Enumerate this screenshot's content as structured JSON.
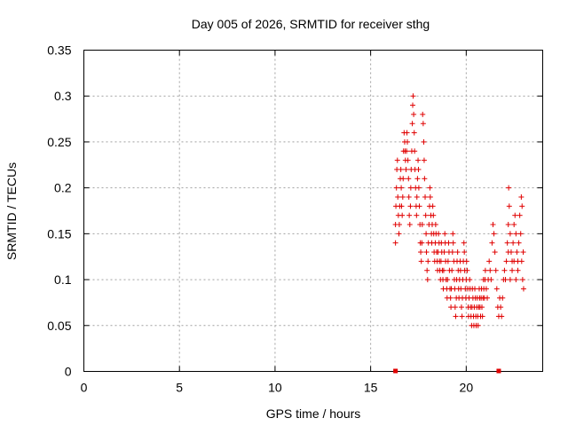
{
  "chart_data": {
    "type": "scatter",
    "title": "Day 005 of 2026, SRMTID for receiver sthg",
    "xlabel": "GPS time / hours",
    "ylabel": "SRMTID / TECUs",
    "xlim": [
      0,
      24
    ],
    "ylim": [
      0,
      0.35
    ],
    "xticks": [
      0,
      5,
      10,
      15,
      20
    ],
    "xtick_labels": [
      "0",
      "5",
      "10",
      "15",
      "20"
    ],
    "yticks": [
      0,
      0.05,
      0.1,
      0.15,
      0.2,
      0.25,
      0.3,
      0.35
    ],
    "ytick_labels": [
      "0",
      "0.05",
      "0.1",
      "0.15",
      "0.2",
      "0.25",
      "0.3",
      "0.35"
    ],
    "grid": true,
    "marker": "+",
    "color": "#e00000",
    "zero_markers": [
      [
        16.3,
        0
      ],
      [
        21.7,
        0
      ]
    ],
    "series": [
      {
        "name": "SRMTID",
        "points": [
          [
            16.3,
            0.14
          ],
          [
            16.3,
            0.16
          ],
          [
            16.32,
            0.18
          ],
          [
            16.35,
            0.2
          ],
          [
            16.37,
            0.22
          ],
          [
            16.4,
            0.23
          ],
          [
            16.42,
            0.19
          ],
          [
            16.45,
            0.17
          ],
          [
            16.48,
            0.15
          ],
          [
            16.5,
            0.16
          ],
          [
            16.52,
            0.18
          ],
          [
            16.55,
            0.21
          ],
          [
            16.58,
            0.22
          ],
          [
            16.6,
            0.2
          ],
          [
            16.62,
            0.18
          ],
          [
            16.65,
            0.17
          ],
          [
            16.68,
            0.19
          ],
          [
            16.7,
            0.21
          ],
          [
            16.72,
            0.24
          ],
          [
            16.75,
            0.26
          ],
          [
            16.78,
            0.25
          ],
          [
            16.8,
            0.24
          ],
          [
            16.82,
            0.23
          ],
          [
            16.85,
            0.22
          ],
          [
            16.88,
            0.24
          ],
          [
            16.9,
            0.26
          ],
          [
            16.92,
            0.25
          ],
          [
            16.95,
            0.23
          ],
          [
            16.98,
            0.21
          ],
          [
            17.0,
            0.19
          ],
          [
            17.02,
            0.17
          ],
          [
            17.05,
            0.16
          ],
          [
            17.08,
            0.18
          ],
          [
            17.1,
            0.2
          ],
          [
            17.12,
            0.22
          ],
          [
            17.15,
            0.24
          ],
          [
            17.18,
            0.27
          ],
          [
            17.2,
            0.29
          ],
          [
            17.22,
            0.3
          ],
          [
            17.25,
            0.28
          ],
          [
            17.28,
            0.26
          ],
          [
            17.3,
            0.24
          ],
          [
            17.32,
            0.22
          ],
          [
            17.35,
            0.2
          ],
          [
            17.38,
            0.18
          ],
          [
            17.4,
            0.17
          ],
          [
            17.42,
            0.19
          ],
          [
            17.45,
            0.21
          ],
          [
            17.48,
            0.23
          ],
          [
            17.5,
            0.22
          ],
          [
            17.52,
            0.2
          ],
          [
            17.55,
            0.18
          ],
          [
            17.58,
            0.16
          ],
          [
            17.6,
            0.14
          ],
          [
            17.62,
            0.13
          ],
          [
            17.65,
            0.12
          ],
          [
            17.68,
            0.14
          ],
          [
            17.7,
            0.16
          ],
          [
            17.72,
            0.28
          ],
          [
            17.75,
            0.27
          ],
          [
            17.78,
            0.25
          ],
          [
            17.8,
            0.23
          ],
          [
            17.82,
            0.21
          ],
          [
            17.85,
            0.19
          ],
          [
            17.88,
            0.17
          ],
          [
            17.9,
            0.15
          ],
          [
            17.92,
            0.13
          ],
          [
            17.95,
            0.11
          ],
          [
            17.98,
            0.1
          ],
          [
            18.0,
            0.12
          ],
          [
            18.02,
            0.14
          ],
          [
            18.05,
            0.16
          ],
          [
            18.08,
            0.18
          ],
          [
            18.1,
            0.2
          ],
          [
            18.12,
            0.19
          ],
          [
            18.15,
            0.17
          ],
          [
            18.18,
            0.15
          ],
          [
            18.2,
            0.14
          ],
          [
            18.22,
            0.16
          ],
          [
            18.25,
            0.18
          ],
          [
            18.28,
            0.17
          ],
          [
            18.3,
            0.15
          ],
          [
            18.32,
            0.13
          ],
          [
            18.35,
            0.12
          ],
          [
            18.38,
            0.14
          ],
          [
            18.4,
            0.16
          ],
          [
            18.42,
            0.15
          ],
          [
            18.45,
            0.13
          ],
          [
            18.48,
            0.12
          ],
          [
            18.5,
            0.11
          ],
          [
            18.52,
            0.13
          ],
          [
            18.55,
            0.15
          ],
          [
            18.58,
            0.14
          ],
          [
            18.6,
            0.12
          ],
          [
            18.62,
            0.11
          ],
          [
            18.65,
            0.1
          ],
          [
            18.68,
            0.12
          ],
          [
            18.7,
            0.14
          ],
          [
            18.72,
            0.13
          ],
          [
            18.75,
            0.11
          ],
          [
            18.78,
            0.1
          ],
          [
            18.8,
            0.09
          ],
          [
            18.82,
            0.11
          ],
          [
            18.85,
            0.13
          ],
          [
            18.88,
            0.15
          ],
          [
            18.9,
            0.14
          ],
          [
            18.92,
            0.12
          ],
          [
            18.95,
            0.1
          ],
          [
            18.98,
            0.09
          ],
          [
            19.0,
            0.08
          ],
          [
            19.02,
            0.1
          ],
          [
            19.05,
            0.12
          ],
          [
            19.08,
            0.14
          ],
          [
            19.1,
            0.13
          ],
          [
            19.12,
            0.11
          ],
          [
            19.15,
            0.09
          ],
          [
            19.18,
            0.08
          ],
          [
            19.2,
            0.07
          ],
          [
            19.22,
            0.09
          ],
          [
            19.25,
            0.11
          ],
          [
            19.28,
            0.13
          ],
          [
            19.3,
            0.15
          ],
          [
            19.32,
            0.14
          ],
          [
            19.35,
            0.12
          ],
          [
            19.38,
            0.1
          ],
          [
            19.4,
            0.09
          ],
          [
            19.42,
            0.07
          ],
          [
            19.45,
            0.06
          ],
          [
            19.48,
            0.08
          ],
          [
            19.5,
            0.1
          ],
          [
            19.52,
            0.12
          ],
          [
            19.55,
            0.13
          ],
          [
            19.58,
            0.11
          ],
          [
            19.6,
            0.09
          ],
          [
            19.62,
            0.08
          ],
          [
            19.65,
            0.1
          ],
          [
            19.68,
            0.12
          ],
          [
            19.7,
            0.11
          ],
          [
            19.72,
            0.09
          ],
          [
            19.75,
            0.07
          ],
          [
            19.78,
            0.06
          ],
          [
            19.8,
            0.08
          ],
          [
            19.82,
            0.1
          ],
          [
            19.85,
            0.12
          ],
          [
            19.88,
            0.14
          ],
          [
            19.9,
            0.13
          ],
          [
            19.92,
            0.11
          ],
          [
            19.95,
            0.09
          ],
          [
            19.98,
            0.08
          ],
          [
            20.0,
            0.1
          ],
          [
            20.02,
            0.12
          ],
          [
            20.05,
            0.11
          ],
          [
            20.08,
            0.09
          ],
          [
            20.1,
            0.07
          ],
          [
            20.12,
            0.06
          ],
          [
            20.15,
            0.08
          ],
          [
            20.18,
            0.1
          ],
          [
            20.2,
            0.09
          ],
          [
            20.22,
            0.07
          ],
          [
            20.25,
            0.06
          ],
          [
            20.28,
            0.05
          ],
          [
            20.3,
            0.07
          ],
          [
            20.32,
            0.09
          ],
          [
            20.35,
            0.08
          ],
          [
            20.38,
            0.06
          ],
          [
            20.4,
            0.05
          ],
          [
            20.42,
            0.07
          ],
          [
            20.45,
            0.09
          ],
          [
            20.48,
            0.08
          ],
          [
            20.5,
            0.06
          ],
          [
            20.52,
            0.05
          ],
          [
            20.55,
            0.07
          ],
          [
            20.58,
            0.08
          ],
          [
            20.6,
            0.06
          ],
          [
            20.62,
            0.05
          ],
          [
            20.65,
            0.07
          ],
          [
            20.68,
            0.09
          ],
          [
            20.7,
            0.08
          ],
          [
            20.72,
            0.07
          ],
          [
            20.75,
            0.06
          ],
          [
            20.78,
            0.08
          ],
          [
            20.8,
            0.09
          ],
          [
            20.82,
            0.07
          ],
          [
            20.85,
            0.06
          ],
          [
            20.88,
            0.08
          ],
          [
            20.9,
            0.1
          ],
          [
            20.92,
            0.09
          ],
          [
            20.95,
            0.08
          ],
          [
            20.98,
            0.1
          ],
          [
            21.0,
            0.11
          ],
          [
            21.05,
            0.09
          ],
          [
            21.1,
            0.08
          ],
          [
            21.15,
            0.1
          ],
          [
            21.2,
            0.12
          ],
          [
            21.25,
            0.11
          ],
          [
            21.3,
            0.1
          ],
          [
            21.35,
            0.14
          ],
          [
            21.4,
            0.16
          ],
          [
            21.45,
            0.15
          ],
          [
            21.5,
            0.13
          ],
          [
            21.55,
            0.11
          ],
          [
            21.6,
            0.09
          ],
          [
            21.65,
            0.07
          ],
          [
            21.7,
            0.06
          ],
          [
            21.75,
            0.08
          ],
          [
            21.8,
            0.07
          ],
          [
            21.85,
            0.06
          ],
          [
            21.9,
            0.08
          ],
          [
            21.95,
            0.1
          ],
          [
            22.0,
            0.11
          ],
          [
            22.05,
            0.1
          ],
          [
            22.1,
            0.12
          ],
          [
            22.15,
            0.14
          ],
          [
            22.2,
            0.16
          ],
          [
            22.22,
            0.2
          ],
          [
            22.25,
            0.18
          ],
          [
            22.3,
            0.15
          ],
          [
            22.35,
            0.13
          ],
          [
            22.4,
            0.12
          ],
          [
            22.45,
            0.14
          ],
          [
            22.5,
            0.16
          ],
          [
            22.55,
            0.17
          ],
          [
            22.6,
            0.15
          ],
          [
            22.65,
            0.13
          ],
          [
            22.7,
            0.12
          ],
          [
            22.75,
            0.14
          ],
          [
            22.8,
            0.17
          ],
          [
            22.85,
            0.15
          ],
          [
            22.9,
            0.12
          ],
          [
            22.95,
            0.1
          ],
          [
            23.0,
            0.09
          ],
          [
            22.98,
            0.13
          ],
          [
            22.92,
            0.18
          ],
          [
            22.88,
            0.19
          ],
          [
            22.7,
            0.11
          ],
          [
            22.6,
            0.1
          ],
          [
            22.5,
            0.12
          ],
          [
            22.4,
            0.11
          ],
          [
            22.3,
            0.1
          ],
          [
            22.2,
            0.13
          ]
        ]
      }
    ]
  }
}
